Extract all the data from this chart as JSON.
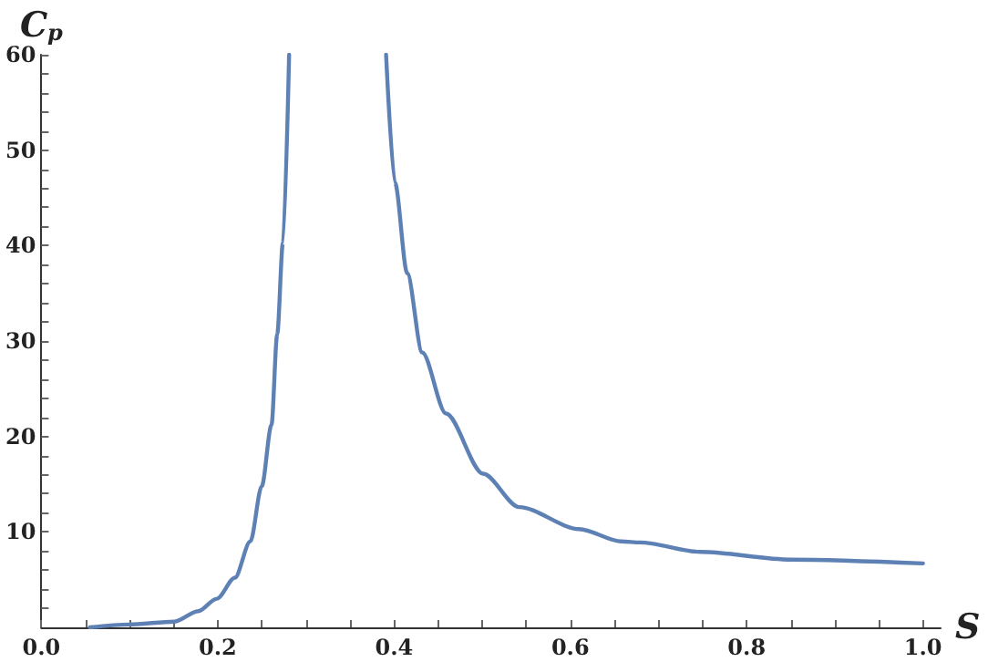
{
  "chart_data": {
    "type": "line",
    "xlabel": "S",
    "ylabel": "C$_{p}$",
    "x": [
      0.055,
      0.099,
      0.151,
      0.178,
      0.199,
      0.2195,
      0.237,
      0.25,
      0.261,
      0.2675,
      0.274,
      0.281,
      0.33,
      0.391,
      0.401,
      0.415,
      0.432,
      0.459,
      0.501,
      0.542,
      0.61,
      0.658,
      0.679,
      0.748,
      0.85,
      1.0
    ],
    "series": [
      {
        "color": "#5e81b5",
        "values": [
          0,
          0.3,
          0.6,
          1.7,
          3.0,
          5.2,
          9.0,
          14.8,
          21.2,
          30.7,
          40.3,
          60,
          null,
          60,
          46.6,
          37.1,
          28.8,
          22.4,
          16.1,
          12.6,
          10.3,
          9.0,
          8.9,
          7.9,
          7.1,
          6.7
        ]
      }
    ],
    "xlim": [
      0,
      1.02
    ],
    "xticks": [
      {
        "value": 0,
        "label": "0.0"
      },
      {
        "value": 0.05,
        "label": null
      },
      {
        "value": 0.1,
        "label": null
      },
      {
        "value": 0.15,
        "label": null
      },
      {
        "value": 0.2,
        "label": "0.2"
      },
      {
        "value": 0.25,
        "label": null
      },
      {
        "value": 0.3,
        "label": null
      },
      {
        "value": 0.35,
        "label": null
      },
      {
        "value": 0.4,
        "label": "0.4"
      },
      {
        "value": 0.45,
        "label": null
      },
      {
        "value": 0.5,
        "label": null
      },
      {
        "value": 0.55,
        "label": null
      },
      {
        "value": 0.6,
        "label": "0.6"
      },
      {
        "value": 0.65,
        "label": null
      },
      {
        "value": 0.7,
        "label": null
      },
      {
        "value": 0.75,
        "label": null
      },
      {
        "value": 0.8,
        "label": "0.8"
      },
      {
        "value": 0.85,
        "label": null
      },
      {
        "value": 0.9,
        "label": null
      },
      {
        "value": 0.95,
        "label": null
      },
      {
        "value": 1.0,
        "label": "1.0"
      }
    ],
    "ylim": [
      0,
      60
    ],
    "yticks": [
      {
        "value": 2,
        "label": null
      },
      {
        "value": 4,
        "label": null
      },
      {
        "value": 6,
        "label": null
      },
      {
        "value": 8,
        "label": null
      },
      10,
      {
        "value": 12,
        "label": null
      },
      {
        "value": 14,
        "label": null
      },
      {
        "value": 16,
        "label": null
      },
      {
        "value": 18,
        "label": null
      },
      20,
      {
        "value": 22,
        "label": null
      },
      {
        "value": 24,
        "label": null
      },
      {
        "value": 26,
        "label": null
      },
      {
        "value": 28,
        "label": null
      },
      30,
      {
        "value": 32,
        "label": null
      },
      {
        "value": 34,
        "label": null
      },
      {
        "value": 36,
        "label": null
      },
      {
        "value": 38,
        "label": null
      },
      40,
      {
        "value": 42,
        "label": null
      },
      {
        "value": 44,
        "label": null
      },
      {
        "value": 46,
        "label": null
      },
      {
        "value": 48,
        "label": null
      },
      50,
      {
        "value": 52,
        "label": null
      },
      {
        "value": 54,
        "label": null
      },
      {
        "value": 56,
        "label": null
      },
      {
        "value": 58,
        "label": null
      },
      60
    ],
    "grid": false,
    "marker": "none",
    "line_style": "solid"
  }
}
